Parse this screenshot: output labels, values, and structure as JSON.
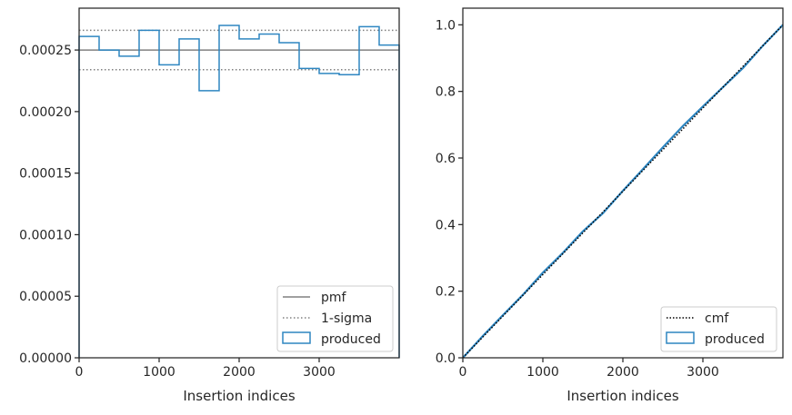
{
  "chart_data": [
    {
      "type": "histogram",
      "xlabel": "Insertion indices",
      "ylabel": "",
      "xlim": [
        0,
        4000
      ],
      "ylim": [
        0,
        0.000284
      ],
      "xticks": [
        0,
        1000,
        2000,
        3000
      ],
      "xtick_labels": [
        "0",
        "1000",
        "2000",
        "3000"
      ],
      "yticks": [
        0,
        5e-05,
        0.0001,
        0.00015,
        0.0002,
        0.00025
      ],
      "ytick_labels": [
        "0.00000",
        "0.00005",
        "0.00010",
        "0.00015",
        "0.00020",
        "0.00025"
      ],
      "pmf": 0.00025,
      "sigma_band": [
        0.000234,
        0.000266
      ],
      "series": [
        {
          "name": "produced",
          "bin_edges": [
            0,
            250,
            500,
            750,
            1000,
            1250,
            1500,
            1750,
            2000,
            2250,
            2500,
            2750,
            3000,
            3250,
            3500,
            3750,
            4000
          ],
          "values": [
            0.000261,
            0.00025,
            0.000245,
            0.000266,
            0.000238,
            0.000259,
            0.000217,
            0.00027,
            0.000259,
            0.000263,
            0.000256,
            0.000235,
            0.000231,
            0.00023,
            0.000269,
            0.000254
          ]
        }
      ],
      "legend": {
        "position": "lower right",
        "entries": [
          {
            "label": "pmf",
            "style": "solid-gray"
          },
          {
            "label": "1-sigma",
            "style": "dotted-gray"
          },
          {
            "label": "produced",
            "style": "box-blue"
          }
        ]
      },
      "grid": false
    },
    {
      "type": "line",
      "xlabel": "Insertion indices",
      "ylabel": "",
      "xlim": [
        0,
        4000
      ],
      "ylim": [
        0,
        1.05
      ],
      "xticks": [
        0,
        1000,
        2000,
        3000
      ],
      "xtick_labels": [
        "0",
        "1000",
        "2000",
        "3000"
      ],
      "yticks": [
        0,
        0.2,
        0.4,
        0.6,
        0.8,
        1.0
      ],
      "ytick_labels": [
        "0.0",
        "0.2",
        "0.4",
        "0.6",
        "0.8",
        "1.0"
      ],
      "series": [
        {
          "name": "cmf",
          "x": [
            0,
            4000
          ],
          "values": [
            0,
            1.0
          ]
        },
        {
          "name": "produced",
          "x": [
            0,
            250,
            500,
            750,
            1000,
            1250,
            1500,
            1750,
            2000,
            2250,
            2500,
            2750,
            3000,
            3250,
            3500,
            3750,
            4000
          ],
          "values": [
            0,
            0.0653,
            0.1278,
            0.189,
            0.2555,
            0.315,
            0.3798,
            0.434,
            0.5015,
            0.5663,
            0.632,
            0.696,
            0.7548,
            0.8125,
            0.87,
            0.9373,
            1.0
          ]
        }
      ],
      "legend": {
        "position": "lower right",
        "entries": [
          {
            "label": "cmf",
            "style": "dotted-black"
          },
          {
            "label": "produced",
            "style": "box-blue"
          }
        ]
      },
      "grid": false
    }
  ],
  "colors": {
    "produced": "#2e86c1",
    "pmf": "#808080",
    "sigma": "#808080",
    "cmf": "#000000",
    "axes": "#262626"
  }
}
